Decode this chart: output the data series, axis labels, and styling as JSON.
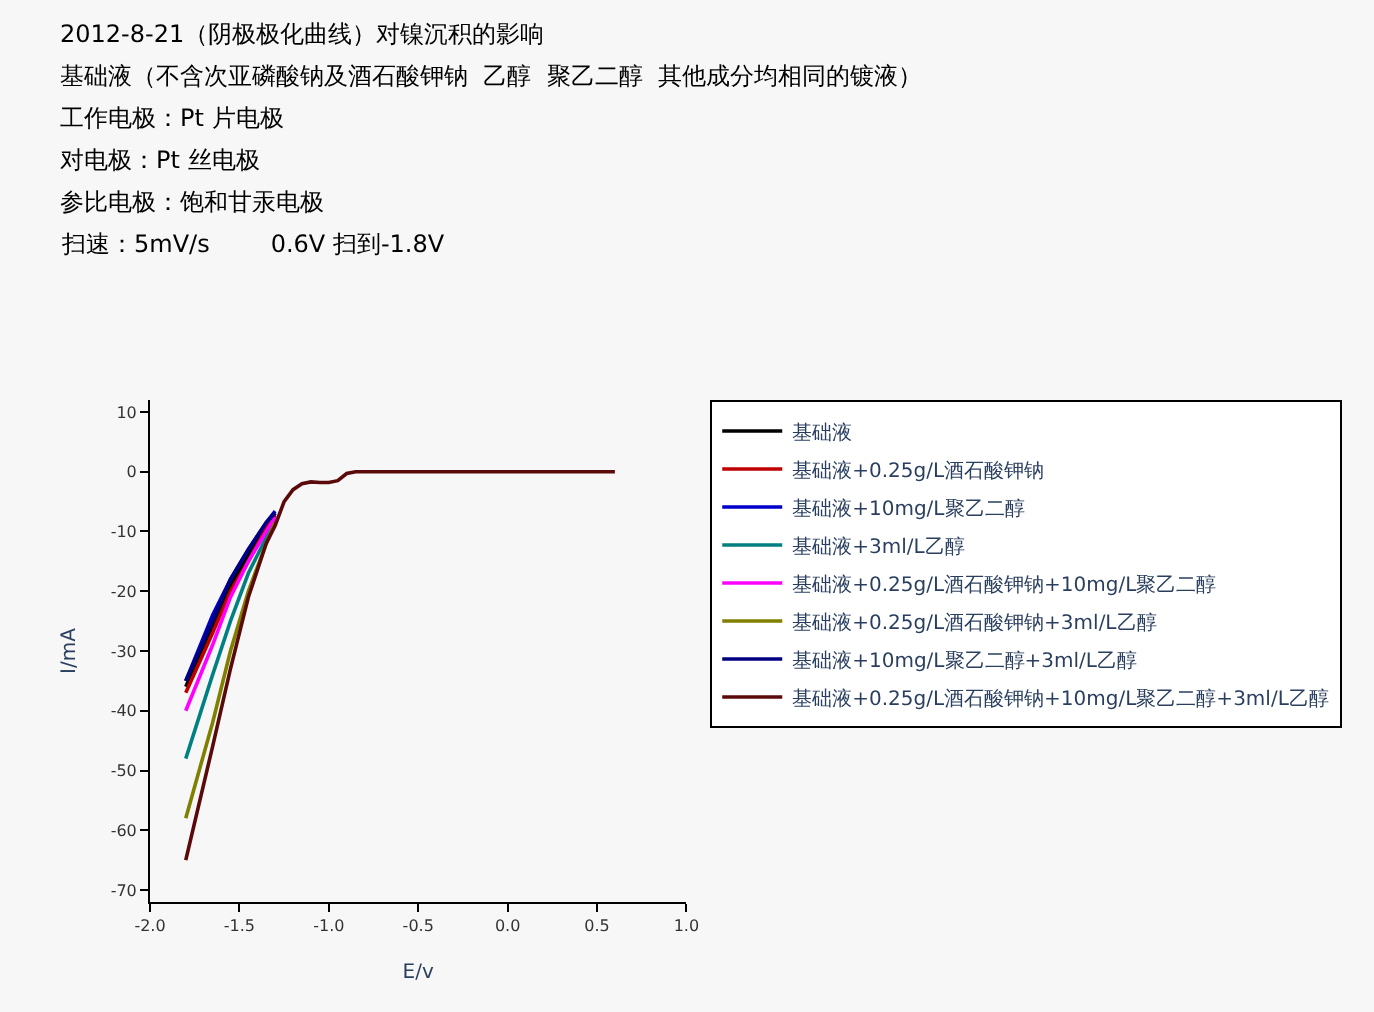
{
  "chart_data": {
    "type": "line",
    "title": "2012-8-21（阴极极化曲线）对镍沉积的影响",
    "annotations": [
      "基础液（不含次亚磷酸钠及酒石酸钾钠  乙醇  聚乙二醇  其他成分均相同的镀液）",
      "工作电极：Pt 片电极",
      "对电极：Pt 丝电极",
      "参比电极：饱和甘汞电极",
      "扫速：5mV/s        0.6V 扫到-1.8V"
    ],
    "xlabel": "E/v",
    "ylabel": "I/mA",
    "x": [
      -1.3,
      -1.35,
      -1.45,
      -1.55,
      -1.65,
      -1.8
    ],
    "series": [
      {
        "name": "基础液",
        "color": "#000000",
        "values": [
          -7,
          -9,
          -14,
          -19,
          -26,
          -36
        ]
      },
      {
        "name": "基础液+0.25g/L酒石酸钾钠",
        "color": "#c00000",
        "values": [
          -7.3,
          -9.5,
          -15,
          -20,
          -27,
          -37
        ]
      },
      {
        "name": "基础液+10mg/L聚乙二醇",
        "color": "#0000cc",
        "values": [
          -6.6,
          -8.5,
          -13,
          -18,
          -24,
          -35
        ]
      },
      {
        "name": "基础液+3ml/L乙醇",
        "color": "#008080",
        "values": [
          -8,
          -11,
          -17,
          -25,
          -34,
          -48
        ]
      },
      {
        "name": "基础液+0.25g/L酒石酸钾钠+10mg/L聚乙二醇",
        "color": "#ff00ff",
        "values": [
          -7.6,
          -10,
          -15,
          -21,
          -29,
          -40
        ]
      },
      {
        "name": "基础液+0.25g/L酒石酸钾钠+3ml/L乙醇",
        "color": "#808000",
        "values": [
          -8.5,
          -12,
          -20,
          -30,
          -42,
          -58
        ]
      },
      {
        "name": "基础液+10mg/L聚乙二醇+3ml/L乙醇",
        "color": "#000080",
        "values": [
          -6.9,
          -8.5,
          -13,
          -18,
          -25,
          -35
        ]
      },
      {
        "name": "基础液+0.25g/L酒石酸钾钠+10mg/L聚乙二醇+3ml/L乙醇",
        "color": "#5a0a0a",
        "x": [
          0.6,
          -0.85,
          -0.9,
          -0.95,
          -1.0,
          -1.05,
          -1.1,
          -1.15,
          -1.2,
          -1.25,
          -1.3,
          -1.35,
          -1.45,
          -1.55,
          -1.65,
          -1.8
        ],
        "values": [
          0,
          0,
          -0.3,
          -1.5,
          -1.8,
          -1.8,
          -1.7,
          -2,
          -3,
          -5,
          -9,
          -12,
          -21,
          -33,
          -46,
          -65
        ]
      }
    ],
    "xlim": [
      -2.0,
      1.0
    ],
    "xticks": [
      {
        "value": -2.0,
        "label": "-2.0"
      },
      {
        "value": -1.5,
        "label": "-1.5"
      },
      {
        "value": -1.0,
        "label": "-1.0"
      },
      {
        "value": -0.5,
        "label": "-0.5"
      },
      {
        "value": 0.0,
        "label": "0.0"
      },
      {
        "value": 0.5,
        "label": "0.5"
      },
      {
        "value": 1.0,
        "label": "1.0"
      }
    ],
    "ylim": [
      -72,
      12
    ],
    "yticks": [
      -70,
      -60,
      -50,
      -40,
      -30,
      -20,
      -10,
      0,
      10
    ],
    "grid": false,
    "legend": "right",
    "marker": "none",
    "line_style": "solid"
  }
}
